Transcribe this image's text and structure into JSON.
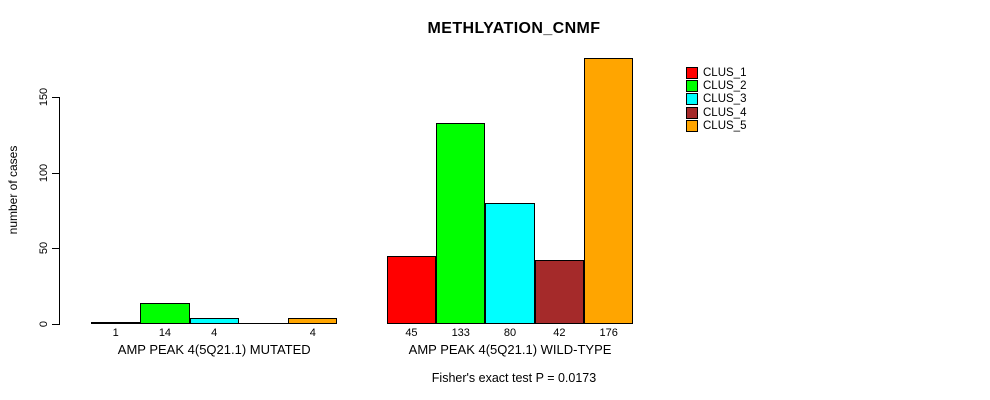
{
  "chart_data": {
    "type": "bar",
    "title": "METHLYATION_CNMF",
    "ylabel": "number of cases",
    "ylim": [
      0,
      176
    ],
    "yticks": [
      0,
      50,
      100,
      150
    ],
    "grid": false,
    "legend_position": "right-outside",
    "series": [
      {
        "name": "CLUS_1",
        "color": "#FF0000",
        "values": [
          1,
          45
        ]
      },
      {
        "name": "CLUS_2",
        "color": "#00FF00",
        "values": [
          14,
          133
        ]
      },
      {
        "name": "CLUS_3",
        "color": "#00FFFF",
        "values": [
          4,
          80
        ]
      },
      {
        "name": "CLUS_4",
        "color": "#A52A2A",
        "values": [
          0,
          42
        ]
      },
      {
        "name": "CLUS_5",
        "color": "#FFA500",
        "values": [
          4,
          176
        ]
      }
    ],
    "groups": [
      {
        "label": "AMP PEAK 4(5Q21.1) MUTATED",
        "values": [
          1,
          14,
          4,
          0,
          4
        ],
        "value_labels": [
          "1",
          "14",
          "4",
          "",
          "4"
        ]
      },
      {
        "label": "AMP PEAK 4(5Q21.1) WILD-TYPE",
        "values": [
          45,
          133,
          80,
          42,
          176
        ],
        "value_labels": [
          "45",
          "133",
          "80",
          "42",
          "176"
        ]
      }
    ],
    "annotation": "Fisher's exact test P = 0.0173"
  }
}
